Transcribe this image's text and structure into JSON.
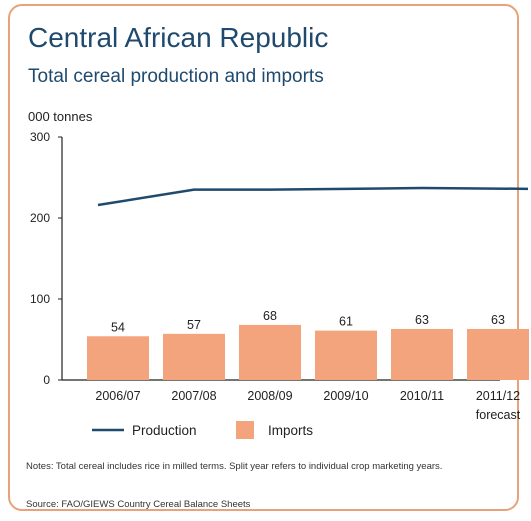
{
  "header": {
    "title": "Central African Republic",
    "subtitle": "Total cereal production and imports"
  },
  "footer": {
    "notes": "Notes: Total cereal includes rice in milled terms. Split year refers to individual crop marketing years.",
    "source": "Source: FAO/GIEWS Country Cereal Balance Sheets"
  },
  "colors": {
    "production_line": "#1f4a6e",
    "imports_bar": "#f4a47c",
    "frame": "#e8a27a"
  },
  "chart_data": {
    "type": "bar",
    "title": "Central African Republic",
    "subtitle": "Total cereal production and imports",
    "ylabel": "000 tonnes",
    "ylim": [
      0,
      300
    ],
    "yticks": [
      0,
      100,
      200,
      300
    ],
    "categories": [
      "2006/07",
      "2007/08",
      "2008/09",
      "2009/10",
      "2010/11",
      "2011/12"
    ],
    "category_sublabels": [
      "",
      "",
      "",
      "",
      "",
      "forecast"
    ],
    "grid": false,
    "legend_position": "bottom-left",
    "series": [
      {
        "name": "Production",
        "type": "line",
        "values": [
          216,
          235,
          235,
          236,
          237,
          236
        ]
      },
      {
        "name": "Imports",
        "type": "bar",
        "values": [
          54,
          57,
          68,
          61,
          63,
          63
        ]
      }
    ]
  }
}
